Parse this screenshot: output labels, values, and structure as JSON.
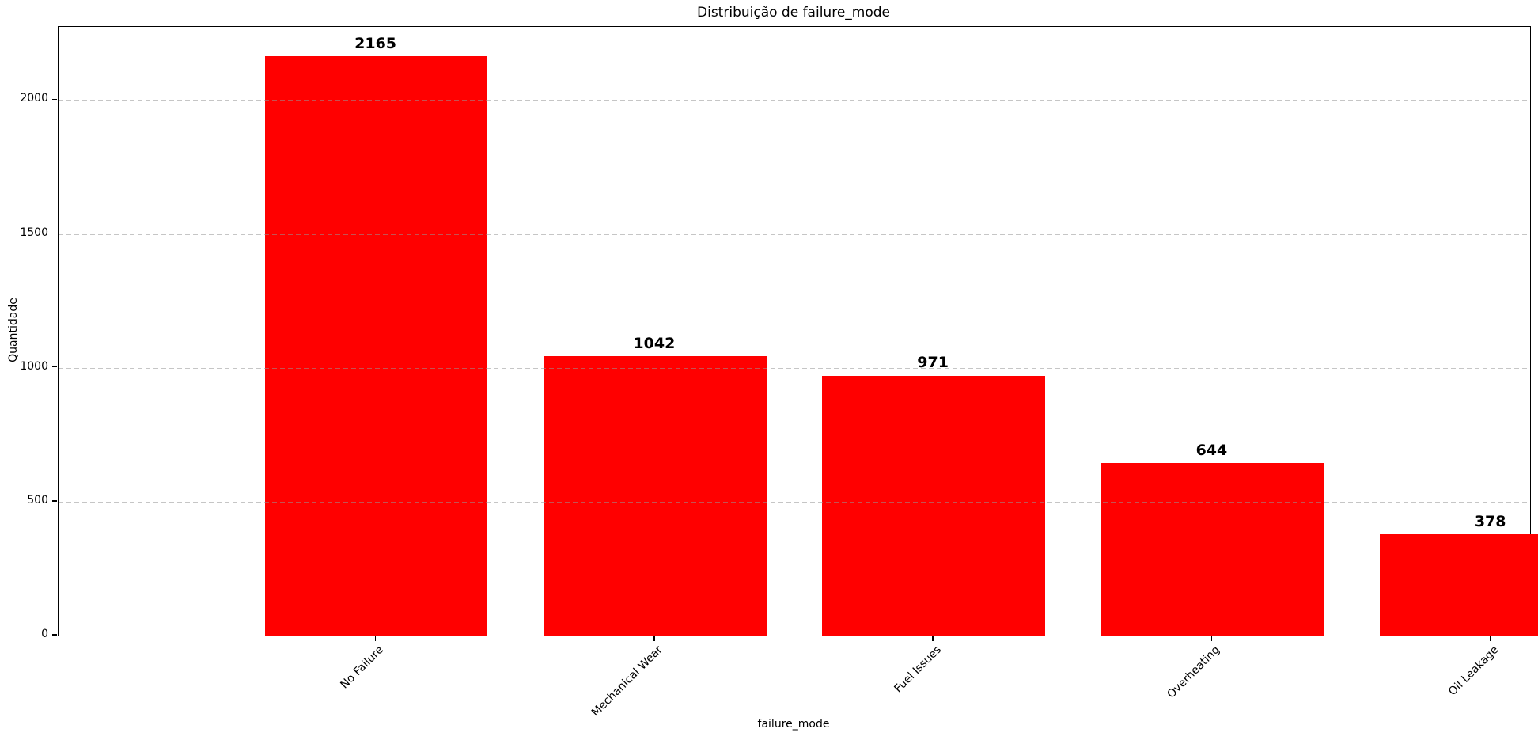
{
  "chart_data": {
    "type": "bar",
    "title": "Distribuição de failure_mode",
    "xlabel": "failure_mode",
    "ylabel": "Quantidade",
    "categories": [
      "No Failure",
      "Mechanical Wear",
      "Fuel Issues",
      "Overheating",
      "Oil Leakage"
    ],
    "values": [
      2165,
      1042,
      971,
      644,
      378
    ],
    "bar_color": "#ff0000",
    "bar_width_fraction": 0.8,
    "xlim": [
      -0.64,
      4.64
    ],
    "ylim": [
      0,
      2273
    ],
    "yticks": [
      0,
      500,
      1000,
      1500,
      2000
    ],
    "grid": "horizontal-dashed-over-bars",
    "xtick_rotation_deg": 45,
    "legend": "none"
  }
}
